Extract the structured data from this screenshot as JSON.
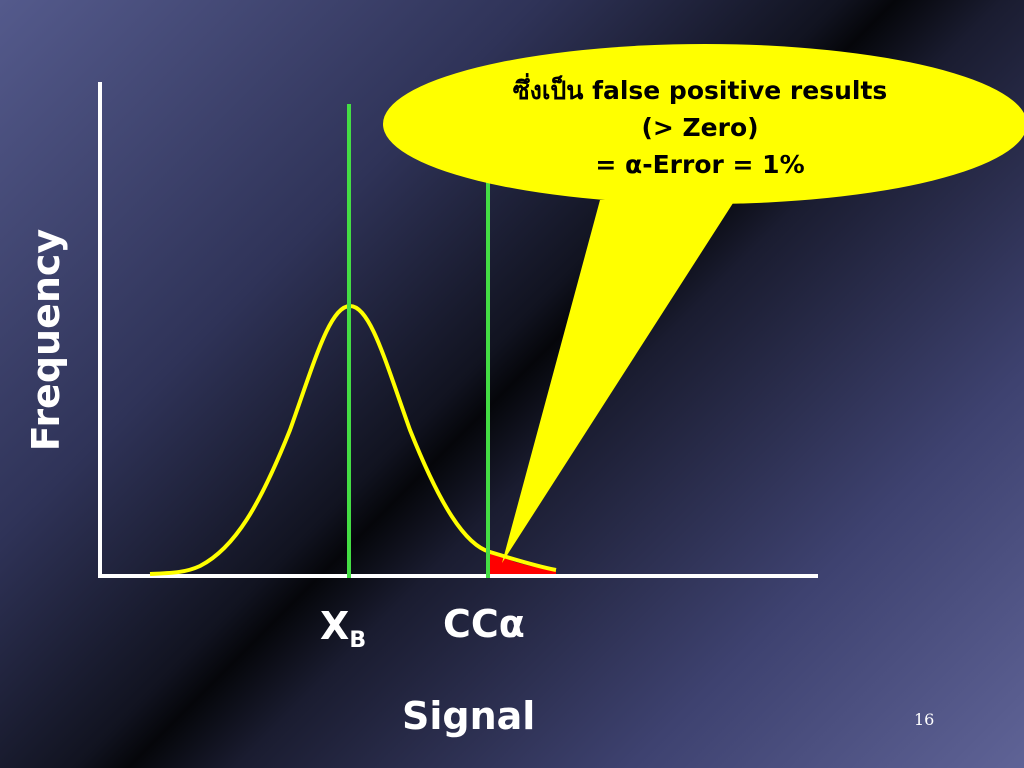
{
  "axes": {
    "y_label": "Frequency",
    "x_label": "Signal"
  },
  "markers": {
    "xb_main": "X",
    "xb_sub": "B",
    "cc_label": "CCα"
  },
  "callout": {
    "line1": "ซึ่งเป็น false positive results",
    "line2": "(> Zero)",
    "line3": "= α-Error = 1%"
  },
  "slide_number": "16",
  "colors": {
    "curve": "#ffff00",
    "vertical_lines": "#44dd44",
    "tail_area": "#ff0000",
    "callout_fill": "#ffff00",
    "axes": "#ffffff"
  }
}
